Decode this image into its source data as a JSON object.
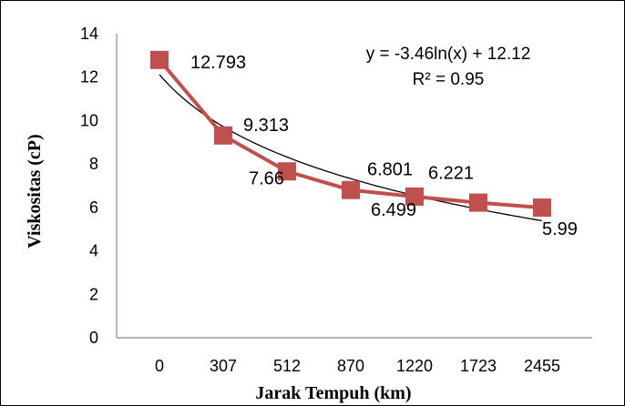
{
  "chart_data": {
    "type": "line",
    "categories": [
      "0",
      "307",
      "512",
      "870",
      "1220",
      "1723",
      "2455"
    ],
    "series": [
      {
        "values": [
          12.793,
          9.313,
          7.66,
          6.801,
          6.499,
          6.221,
          5.99
        ],
        "data_labels": [
          "12.793",
          "9.313",
          "7.66",
          "6.801",
          "6.499",
          "6.221",
          "5.99"
        ],
        "color": "#c0504d",
        "marker": "square"
      }
    ],
    "trendline": {
      "type": "logarithmic",
      "a": -3.46,
      "b": 12.12,
      "color": "#000000",
      "equation": "y = -3.46ln(x) + 12.12",
      "r2": "R² = 0.95"
    },
    "ylim": [
      0,
      14
    ],
    "yticks": [
      "0",
      "2",
      "4",
      "6",
      "8",
      "10",
      "12",
      "14"
    ],
    "xlabel": "Jarak Tempuh (km)",
    "ylabel": "Viskositas (cP)",
    "grid": false
  }
}
